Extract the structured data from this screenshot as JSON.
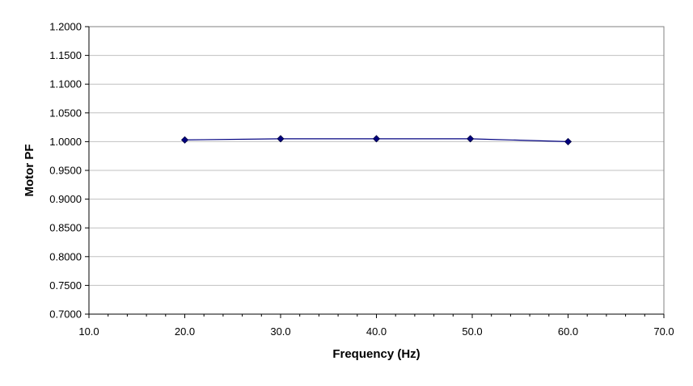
{
  "chart_data": {
    "type": "scatter",
    "title": "",
    "xlabel": "Frequency (Hz)",
    "ylabel": "Motor PF",
    "xlim": [
      10,
      70
    ],
    "ylim": [
      0.7,
      1.2
    ],
    "x_ticks": [
      "10.0",
      "20.0",
      "30.0",
      "40.0",
      "50.0",
      "60.0",
      "70.0"
    ],
    "y_ticks": [
      "0.7000",
      "0.7500",
      "0.8000",
      "0.8500",
      "0.9000",
      "0.9500",
      "1.0000",
      "1.0500",
      "1.1000",
      "1.1500",
      "1.2000"
    ],
    "grid": "horizontal",
    "legend": "none",
    "series": [
      {
        "color": "#000080",
        "marker": "diamond",
        "line": true,
        "points": [
          {
            "x": 20.0,
            "y": 1.003
          },
          {
            "x": 30.0,
            "y": 1.005
          },
          {
            "x": 40.0,
            "y": 1.005
          },
          {
            "x": 49.8,
            "y": 1.005
          },
          {
            "x": 60.0,
            "y": 1.0
          }
        ]
      }
    ]
  }
}
